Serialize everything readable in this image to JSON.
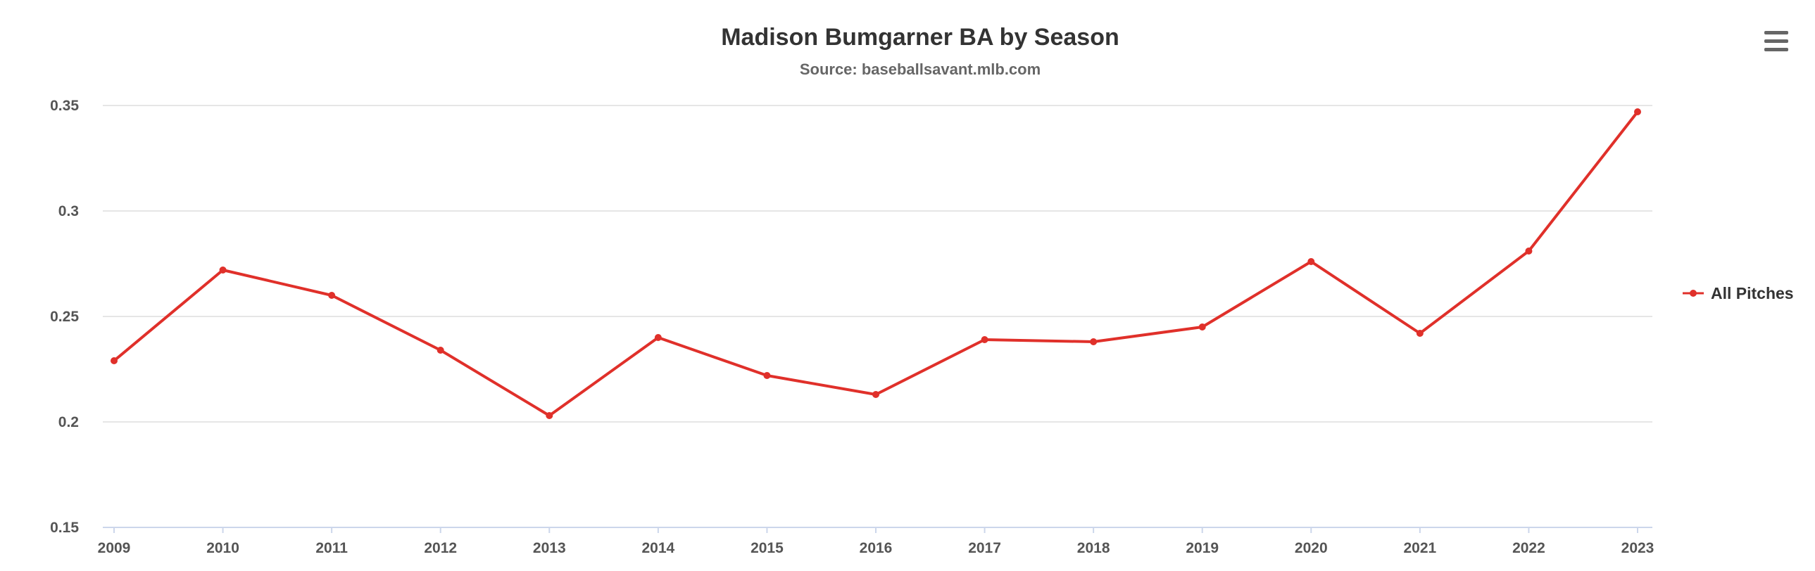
{
  "chart_data": {
    "type": "line",
    "title": "Madison Bumgarner BA by Season",
    "subtitle": "Source: baseballsavant.mlb.com",
    "xlabel": "",
    "ylabel": "",
    "categories": [
      "2009",
      "2010",
      "2011",
      "2012",
      "2013",
      "2014",
      "2015",
      "2016",
      "2017",
      "2018",
      "2019",
      "2020",
      "2021",
      "2022",
      "2023"
    ],
    "series": [
      {
        "name": "All Pitches",
        "color": "#e0302a",
        "values": [
          0.229,
          0.272,
          0.26,
          0.234,
          0.203,
          0.24,
          0.222,
          0.213,
          0.239,
          0.238,
          0.245,
          0.276,
          0.242,
          0.281,
          0.347
        ]
      }
    ],
    "ylim": [
      0.15,
      0.35
    ],
    "yticks": [
      "0.15",
      "0.2",
      "0.25",
      "0.3",
      "0.35"
    ],
    "grid": true,
    "legend_position": "right"
  },
  "menu": {
    "icon": "hamburger-menu-icon"
  }
}
